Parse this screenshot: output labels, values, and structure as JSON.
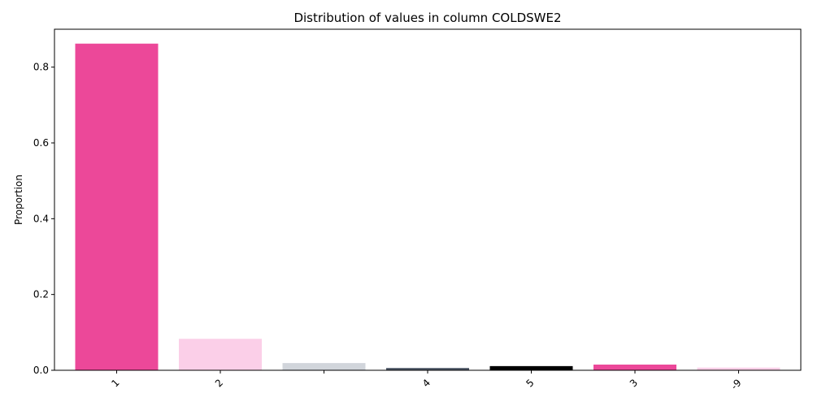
{
  "chart_data": {
    "type": "bar",
    "title": "Distribution of values in column COLDSWE2",
    "xlabel": "",
    "ylabel": "Proportion",
    "categories": [
      "1",
      "2",
      "",
      "4",
      "5",
      "3",
      "-9"
    ],
    "values": [
      0.862,
      0.083,
      0.019,
      0.006,
      0.011,
      0.015,
      0.007
    ],
    "colors": [
      "#ec4899",
      "#fbcfe8",
      "#d1d5db",
      "#4b5563",
      "#000000",
      "#ec4899",
      "#fbcfe8"
    ],
    "ylim": [
      0,
      0.9
    ],
    "yticks": [
      0.0,
      0.2,
      0.4,
      0.6,
      0.8
    ],
    "ytick_labels": [
      "0.0",
      "0.2",
      "0.4",
      "0.6",
      "0.8"
    ],
    "grid": false,
    "legend": "none"
  }
}
